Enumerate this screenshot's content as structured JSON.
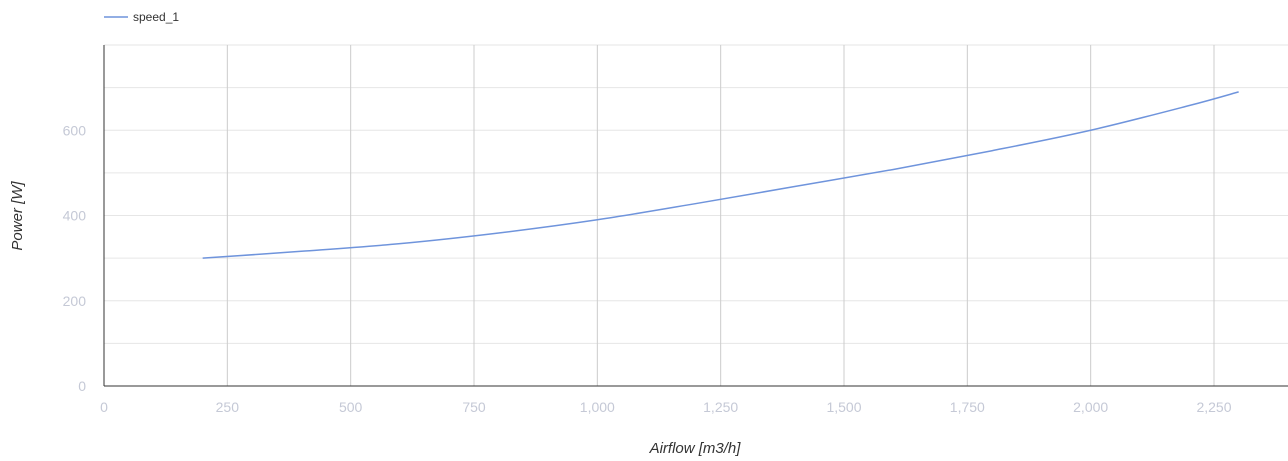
{
  "chart_data": {
    "type": "line",
    "xlabel": "Airflow [m3/h]",
    "ylabel": "Power [W]",
    "xlim": [
      0,
      2400
    ],
    "ylim": [
      0,
      800
    ],
    "x_ticks": [
      0,
      250,
      500,
      750,
      1000,
      1250,
      1500,
      1750,
      2000,
      2250
    ],
    "x_tick_labels": [
      "0",
      "250",
      "500",
      "750",
      "1,000",
      "1,250",
      "1,500",
      "1,750",
      "2,000",
      "2,250"
    ],
    "y_ticks": [
      0,
      200,
      400,
      600
    ],
    "y_tick_labels": [
      "0",
      "200",
      "400",
      "600"
    ],
    "y_gridlines": [
      0,
      100,
      200,
      300,
      400,
      500,
      600,
      700,
      800
    ],
    "grid": true,
    "legend": {
      "position": "top-left"
    },
    "series": [
      {
        "name": "speed_1",
        "color": "#6f94dc",
        "x": [
          200,
          400,
          600,
          800,
          1000,
          1200,
          1400,
          1600,
          1800,
          2000,
          2200,
          2300
        ],
        "y": [
          300,
          316,
          334,
          359,
          390,
          428,
          468,
          508,
          552,
          600,
          658,
          690
        ]
      }
    ]
  }
}
